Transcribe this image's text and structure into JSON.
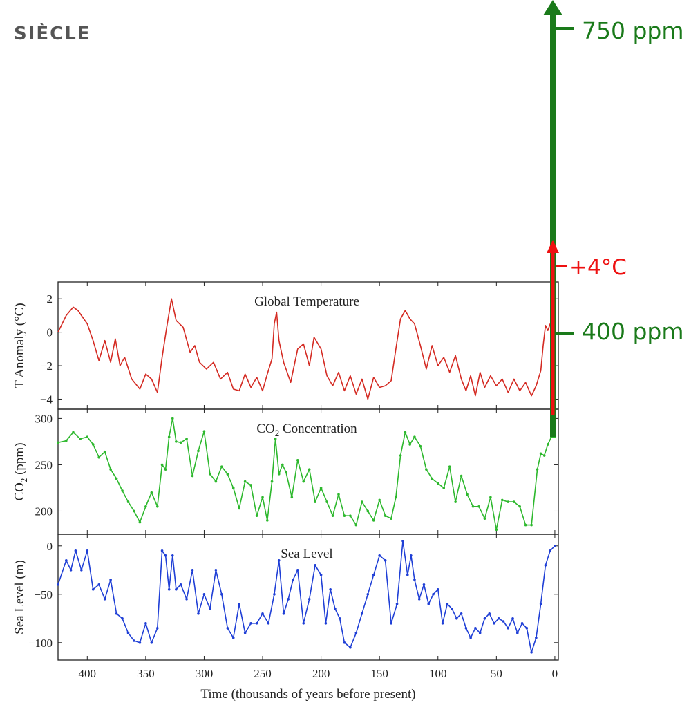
{
  "heading": "SIÈCLE",
  "colors": {
    "temperature": "#d42a22",
    "co2": "#2db82d",
    "sea_level": "#1f3fd6",
    "projection_co2": "#1a7a1a",
    "projection_temp": "#ee1111",
    "axis": "#222222"
  },
  "annotations": {
    "co2_future": "750 ppm",
    "temp_future": "+4°C",
    "co2_now": "400 ppm"
  },
  "xaxis": {
    "label": "Time (thousands of years before present)",
    "ticks": [
      400,
      350,
      300,
      250,
      200,
      150,
      100,
      50,
      0
    ],
    "range": [
      425,
      -3
    ]
  },
  "chart_data": [
    {
      "type": "line",
      "title": "Global Temperature",
      "ylabel": "T Anomaly (°C)",
      "ylim": [
        -4.6,
        3
      ],
      "yticks": [
        2,
        0,
        -2,
        -4
      ],
      "grid": false,
      "series": [
        {
          "color": "#d42a22",
          "x": [
            425,
            418,
            412,
            408,
            400,
            395,
            390,
            385,
            380,
            376,
            372,
            368,
            362,
            355,
            350,
            345,
            340,
            336,
            332,
            328,
            324,
            318,
            312,
            308,
            304,
            298,
            292,
            286,
            280,
            275,
            270,
            265,
            260,
            255,
            250,
            246,
            242,
            240,
            238,
            236,
            232,
            226,
            220,
            215,
            210,
            206,
            200,
            195,
            190,
            185,
            180,
            175,
            170,
            165,
            160,
            155,
            150,
            145,
            140,
            136,
            132,
            128,
            124,
            120,
            115,
            110,
            105,
            100,
            95,
            90,
            85,
            80,
            76,
            72,
            68,
            64,
            60,
            55,
            50,
            45,
            40,
            35,
            30,
            25,
            20,
            16,
            12,
            10,
            8,
            6,
            4,
            2,
            0
          ],
          "values": [
            0,
            1,
            1.5,
            1.3,
            0.5,
            -0.5,
            -1.7,
            -0.5,
            -1.8,
            -0.4,
            -2,
            -1.5,
            -2.8,
            -3.4,
            -2.5,
            -2.8,
            -3.6,
            -1.5,
            0.3,
            2,
            0.7,
            0.3,
            -1.2,
            -0.8,
            -1.8,
            -2.2,
            -1.8,
            -2.8,
            -2.4,
            -3.4,
            -3.5,
            -2.5,
            -3.3,
            -2.7,
            -3.5,
            -2.5,
            -1.6,
            0.5,
            1.2,
            -0.5,
            -1.8,
            -3,
            -1,
            -0.7,
            -2,
            -0.3,
            -1,
            -2.6,
            -3.2,
            -2.4,
            -3.5,
            -2.6,
            -3.7,
            -2.8,
            -4,
            -2.7,
            -3.3,
            -3.2,
            -2.9,
            -1,
            0.8,
            1.3,
            0.8,
            0.5,
            -0.8,
            -2.2,
            -0.8,
            -2,
            -1.5,
            -2.4,
            -1.4,
            -2.8,
            -3.5,
            -2.6,
            -3.8,
            -2.4,
            -3.3,
            -2.6,
            -3.2,
            -2.8,
            -3.6,
            -2.8,
            -3.5,
            -3,
            -3.8,
            -3.2,
            -2.3,
            -0.8,
            0.4,
            0.1,
            0.5,
            0.1,
            0
          ]
        }
      ]
    },
    {
      "type": "line",
      "title": "CO2 Concentration",
      "ylabel": "CO2 (ppm)",
      "ylim": [
        175,
        310
      ],
      "yticks": [
        300,
        250,
        200
      ],
      "grid": false,
      "series": [
        {
          "color": "#2db82d",
          "x": [
            425,
            418,
            412,
            406,
            400,
            395,
            390,
            385,
            380,
            375,
            370,
            365,
            360,
            355,
            350,
            345,
            340,
            336,
            333,
            330,
            327,
            324,
            320,
            315,
            310,
            305,
            300,
            295,
            290,
            285,
            280,
            275,
            270,
            265,
            260,
            255,
            250,
            246,
            242,
            239,
            236,
            233,
            230,
            225,
            220,
            215,
            210,
            205,
            200,
            195,
            190,
            185,
            180,
            175,
            170,
            165,
            160,
            155,
            150,
            145,
            140,
            136,
            132,
            128,
            124,
            120,
            115,
            110,
            105,
            100,
            95,
            90,
            85,
            80,
            75,
            70,
            65,
            60,
            55,
            50,
            45,
            40,
            35,
            30,
            25,
            20,
            15,
            12,
            9,
            6,
            3,
            0
          ],
          "values": [
            274,
            276,
            285,
            278,
            280,
            272,
            258,
            264,
            245,
            235,
            222,
            210,
            200,
            188,
            205,
            220,
            205,
            250,
            245,
            280,
            300,
            275,
            274,
            278,
            238,
            265,
            286,
            240,
            232,
            248,
            240,
            225,
            203,
            232,
            228,
            195,
            215,
            190,
            232,
            278,
            240,
            250,
            242,
            215,
            255,
            232,
            245,
            210,
            225,
            210,
            195,
            218,
            195,
            195,
            185,
            210,
            200,
            190,
            212,
            195,
            192,
            215,
            260,
            285,
            272,
            280,
            270,
            245,
            235,
            230,
            225,
            248,
            210,
            238,
            218,
            205,
            205,
            192,
            215,
            180,
            212,
            210,
            210,
            205,
            185,
            185,
            245,
            262,
            260,
            272,
            280,
            280
          ]
        }
      ]
    },
    {
      "type": "line",
      "title": "Sea Level",
      "ylabel": "Sea Level (m)",
      "ylim": [
        -118,
        12
      ],
      "yticks": [
        0,
        -50,
        -100
      ],
      "grid": false,
      "series": [
        {
          "color": "#1f3fd6",
          "x": [
            425,
            418,
            414,
            410,
            405,
            400,
            395,
            390,
            385,
            380,
            375,
            370,
            365,
            360,
            355,
            350,
            345,
            340,
            336,
            333,
            330,
            327,
            324,
            320,
            315,
            310,
            305,
            300,
            295,
            290,
            285,
            280,
            275,
            270,
            265,
            260,
            255,
            250,
            245,
            240,
            236,
            232,
            228,
            224,
            220,
            215,
            210,
            205,
            200,
            196,
            192,
            188,
            184,
            180,
            175,
            170,
            165,
            160,
            155,
            150,
            145,
            140,
            135,
            130,
            126,
            123,
            120,
            116,
            112,
            108,
            104,
            100,
            96,
            92,
            88,
            84,
            80,
            76,
            72,
            68,
            64,
            60,
            56,
            52,
            48,
            44,
            40,
            36,
            32,
            28,
            24,
            20,
            16,
            12,
            8,
            4,
            0
          ],
          "values": [
            -40,
            -15,
            -25,
            -5,
            -25,
            -5,
            -45,
            -40,
            -55,
            -35,
            -70,
            -75,
            -90,
            -98,
            -100,
            -80,
            -100,
            -85,
            -5,
            -10,
            -45,
            -10,
            -45,
            -40,
            -55,
            -25,
            -70,
            -50,
            -65,
            -25,
            -50,
            -85,
            -95,
            -60,
            -90,
            -80,
            -80,
            -70,
            -80,
            -50,
            -15,
            -70,
            -55,
            -35,
            -25,
            -80,
            -55,
            -20,
            -30,
            -80,
            -45,
            -65,
            -75,
            -100,
            -105,
            -90,
            -70,
            -50,
            -30,
            -10,
            -15,
            -80,
            -60,
            5,
            -30,
            -10,
            -35,
            -55,
            -40,
            -60,
            -50,
            -45,
            -80,
            -60,
            -65,
            -75,
            -70,
            -85,
            -95,
            -85,
            -90,
            -75,
            -70,
            -80,
            -75,
            -78,
            -85,
            -75,
            -90,
            -80,
            -85,
            -110,
            -95,
            -60,
            -20,
            -5,
            0
          ]
        }
      ]
    }
  ]
}
